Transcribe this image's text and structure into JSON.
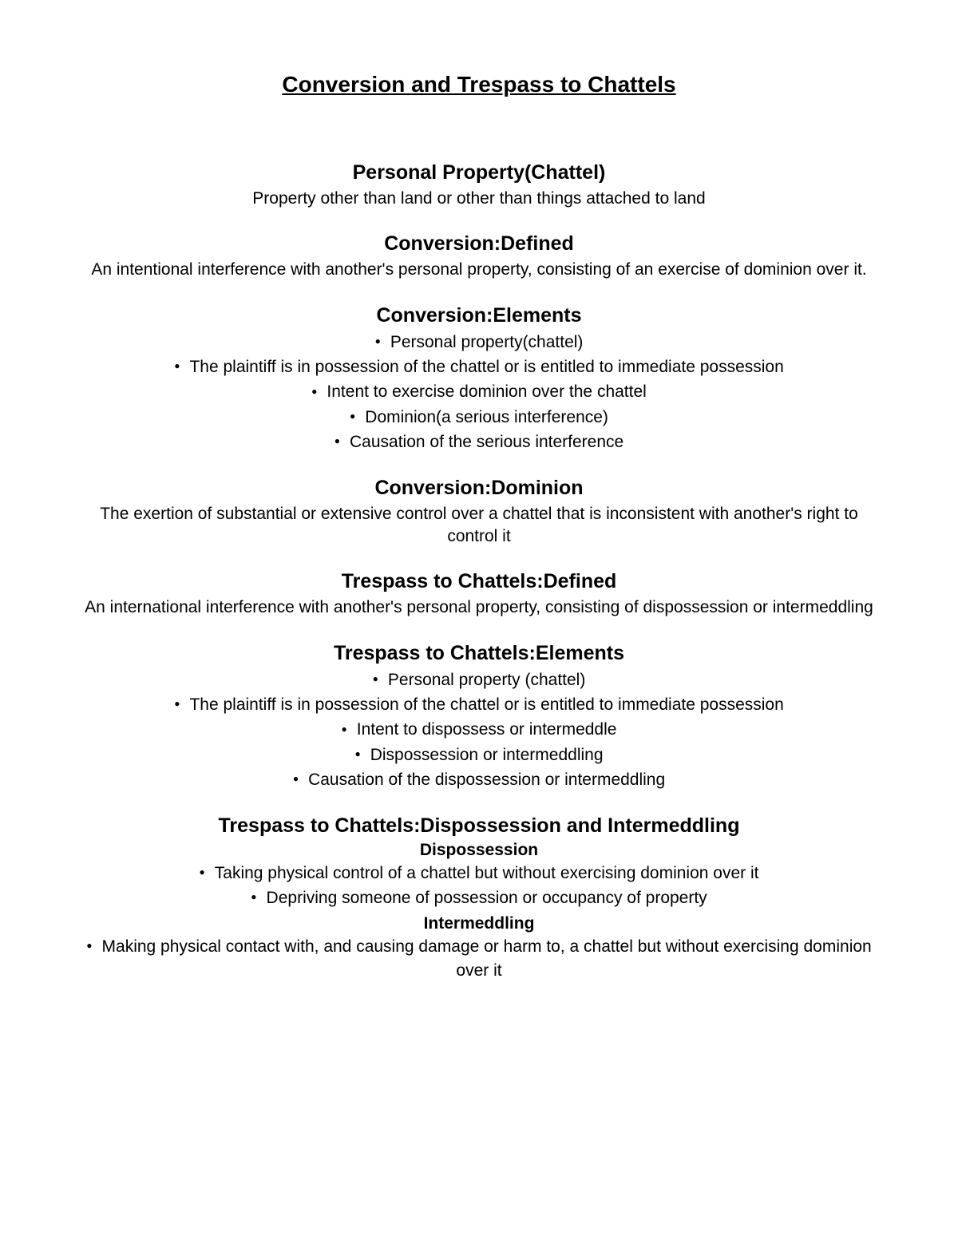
{
  "title": "Conversion and Trespass to Chattels ",
  "sections": [
    {
      "heading": "Personal Property(Chattel)",
      "body": "Property other than land or other than things attached to land"
    },
    {
      "heading": "Conversion:Defined",
      "body": "An intentional interference with another's personal property, consisting of an exercise of dominion over it."
    },
    {
      "heading": "Conversion:Elements",
      "bullets": [
        "Personal property(chattel)",
        "The plaintiff is in possession of the chattel or is entitled to immediate possession",
        "Intent to exercise dominion over the chattel",
        "Dominion(a serious interference)",
        "Causation of the serious interference"
      ]
    },
    {
      "heading": "Conversion:Dominion",
      "body": "The exertion of substantial or extensive control over a chattel that is inconsistent with another's right to control it"
    },
    {
      "heading": "Trespass to Chattels:Defined",
      "body": "An international interference with another's personal property, consisting of dispossession or intermeddling"
    },
    {
      "heading": "Trespass to Chattels:Elements",
      "bullets": [
        "Personal property (chattel)",
        "The plaintiff is in possession of the chattel or is entitled to immediate possession",
        "Intent to dispossess or intermeddle",
        "Dispossession or intermeddling",
        "Causation of the dispossession or intermeddling"
      ]
    },
    {
      "heading": "Trespass to Chattels:Dispossession and Intermeddling",
      "subsections": [
        {
          "subheading": "Dispossession",
          "bullets": [
            "Taking physical control of a chattel but without exercising dominion over it",
            "Depriving someone of possession or occupancy of property"
          ]
        },
        {
          "subheading": "Intermeddling",
          "bullets": [
            "Making physical contact with, and causing damage or harm to, a chattel but without exercising dominion over it"
          ]
        }
      ]
    }
  ]
}
